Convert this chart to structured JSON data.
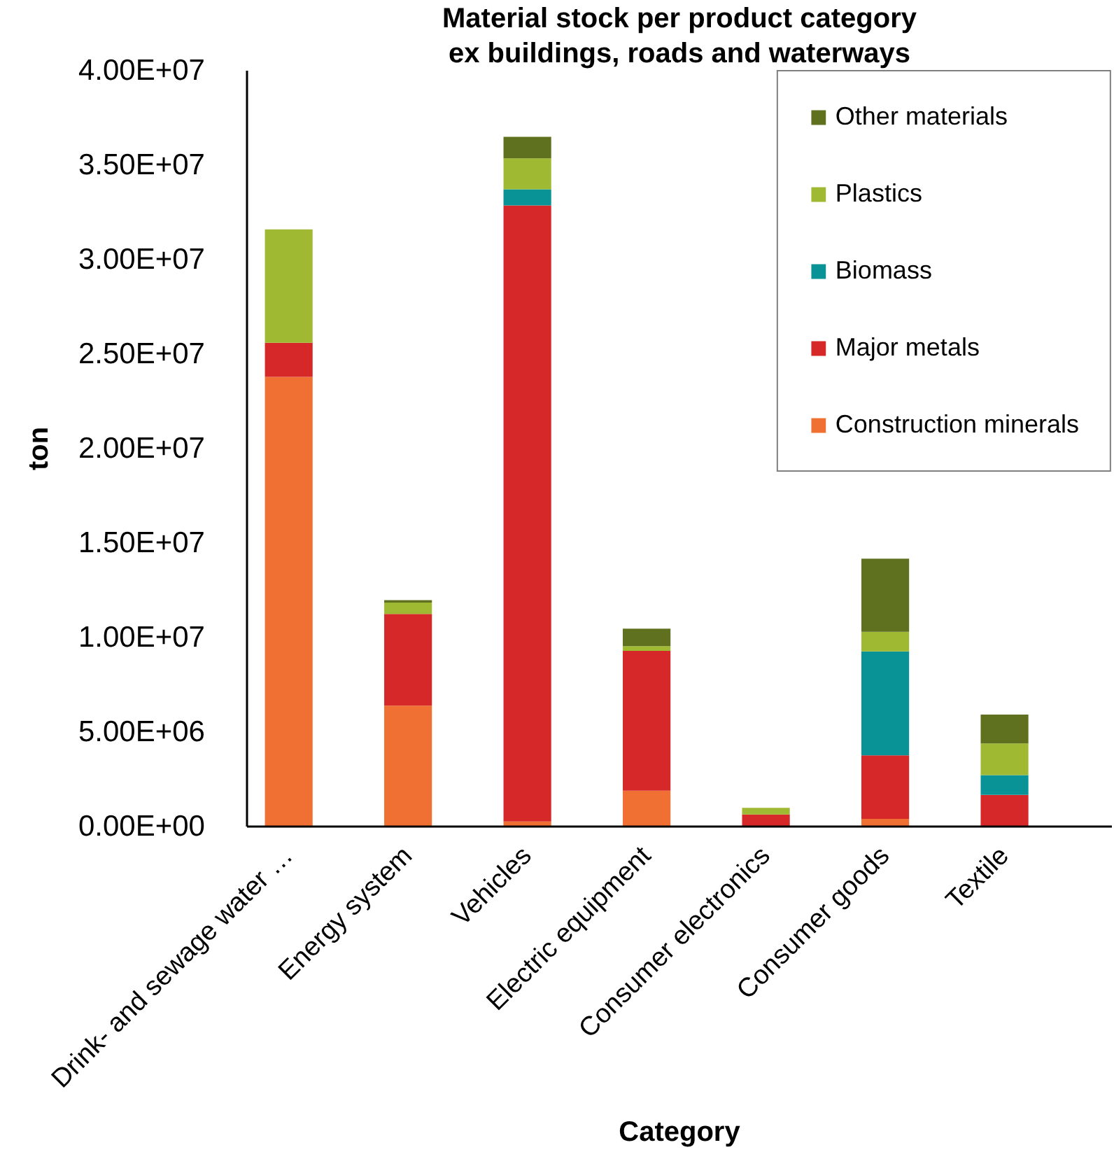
{
  "chart_data": {
    "type": "bar",
    "title": "Material stock per product category",
    "subtitle": "ex buildings, roads and waterways",
    "xlabel": "Category",
    "ylabel": "ton",
    "categories": [
      "Drink- and sewage water …",
      "Energy system",
      "Vehicles",
      "Electric equipment",
      "Consumer electronics",
      "Consumer goods",
      "Textile"
    ],
    "stacked": true,
    "series": [
      {
        "name": "Construction minerals",
        "color": "#f07033",
        "values": [
          23800000,
          6400000,
          270000,
          1900000,
          0,
          410000,
          0
        ]
      },
      {
        "name": "Major metals",
        "color": "#d62829",
        "values": [
          1800000,
          4850000,
          32600000,
          7400000,
          640000,
          3360000,
          1680000
        ]
      },
      {
        "name": "Biomass",
        "color": "#0a9396",
        "values": [
          0,
          0,
          850000,
          0,
          0,
          5500000,
          1040000
        ]
      },
      {
        "name": "Plastics",
        "color": "#a0b932",
        "values": [
          6000000,
          600000,
          1640000,
          250000,
          350000,
          1040000,
          1680000
        ]
      },
      {
        "name": "Other materials",
        "color": "#5f701e",
        "values": [
          0,
          130000,
          1140000,
          920000,
          0,
          3870000,
          1530000
        ]
      }
    ],
    "ylim": [
      0,
      40000000
    ],
    "yticks": [
      {
        "value": 0,
        "label": "0.00E+00"
      },
      {
        "value": 5000000,
        "label": "5.00E+06"
      },
      {
        "value": 10000000,
        "label": "1.00E+07"
      },
      {
        "value": 15000000,
        "label": "1.50E+07"
      },
      {
        "value": 20000000,
        "label": "2.00E+07"
      },
      {
        "value": 25000000,
        "label": "2.50E+07"
      },
      {
        "value": 30000000,
        "label": "3.00E+07"
      },
      {
        "value": 35000000,
        "label": "3.50E+07"
      },
      {
        "value": 40000000,
        "label": "4.00E+07"
      }
    ],
    "legend": "top right"
  }
}
